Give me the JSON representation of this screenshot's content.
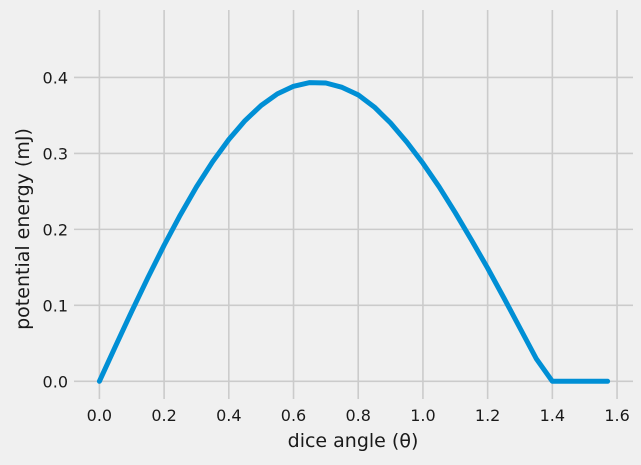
{
  "chart_data": {
    "type": "line",
    "xlabel": "dice angle (θ)",
    "ylabel": "potential energy (mJ)",
    "xlim": [
      -0.0785,
      1.6493
    ],
    "ylim": [
      -0.0233,
      0.4888
    ],
    "xticks": [
      0.0,
      0.2,
      0.4,
      0.6,
      0.8,
      1.0,
      1.2,
      1.4,
      1.6
    ],
    "xtick_labels": [
      "0.0",
      "0.2",
      "0.4",
      "0.6",
      "0.8",
      "1.0",
      "1.2",
      "1.4",
      "1.6"
    ],
    "yticks": [
      0.0,
      0.1,
      0.2,
      0.3,
      0.4
    ],
    "ytick_labels": [
      "0.0",
      "0.1",
      "0.2",
      "0.3",
      "0.4"
    ],
    "grid": true,
    "colors": {
      "background": "#f0f0f0",
      "grid": "#cbcbcb",
      "line": "#008fd5"
    },
    "series": [
      {
        "color": "#008fd5",
        "x": [
          0.0,
          0.05,
          0.1,
          0.15,
          0.2,
          0.25,
          0.3,
          0.35,
          0.4,
          0.45,
          0.5,
          0.55,
          0.6,
          0.65,
          0.7,
          0.75,
          0.785,
          0.8,
          0.85,
          0.9,
          0.95,
          1.0,
          1.05,
          1.1,
          1.15,
          1.2,
          1.25,
          1.3,
          1.35,
          1.4,
          1.45,
          1.5,
          1.5708
        ],
        "y": [
          0.0,
          0.0464,
          0.0922,
          0.1366,
          0.1791,
          0.219,
          0.2559,
          0.2891,
          0.3183,
          0.3431,
          0.3632,
          0.3784,
          0.3884,
          0.3932,
          0.3927,
          0.387,
          0.38,
          0.377,
          0.361,
          0.34,
          0.315,
          0.287,
          0.256,
          0.222,
          0.186,
          0.149,
          0.11,
          0.07,
          0.03,
          0.0,
          0.0,
          0.0,
          0.0
        ]
      }
    ]
  }
}
